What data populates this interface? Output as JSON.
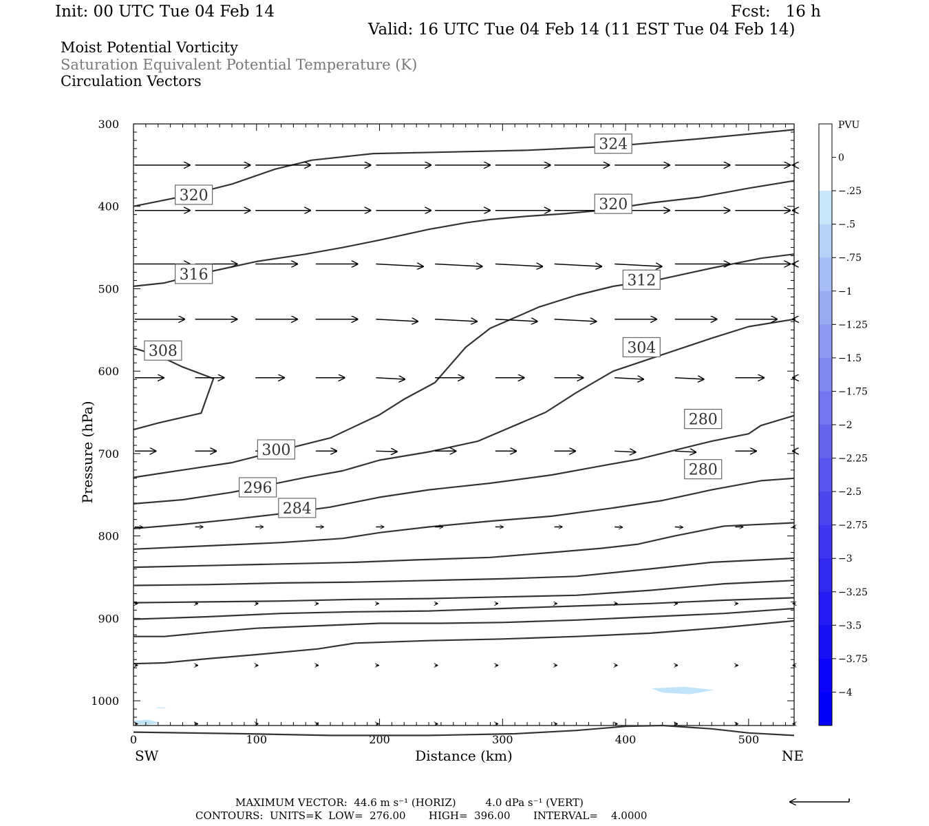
{
  "header": {
    "init": "Init: 00 UTC Tue 04 Feb 14",
    "fcst": "Fcst:   16 h",
    "valid": "Valid: 16 UTC Tue 04 Feb 14 (11 EST Tue 04 Feb 14)",
    "field1": "Moist Potential Vorticity",
    "field2": "Saturation Equivalent Potential Temperature (K)",
    "field3": "Circulation Vectors"
  },
  "footer": {
    "line1": "MAXIMUM VECTOR:  44.6 m s⁻¹ (HORIZ)         4.0 dPa s⁻¹ (VERT)",
    "line2": "CONTOURS:  UNITS=K  LOW=  276.00       HIGH=  396.00       INTERVAL=    4.0000"
  },
  "chart_data": {
    "type": "cross-section",
    "xlabel": "Distance (km)",
    "ylabel": "Pressure (hPa)",
    "xlim": [
      0,
      537
    ],
    "ylim": [
      1030,
      300
    ],
    "x_ticks": [
      "0",
      "100",
      "200",
      "300",
      "400",
      "500"
    ],
    "y_ticks": [
      "300",
      "400",
      "500",
      "600",
      "700",
      "800",
      "900",
      "1000"
    ],
    "x_end_labels": {
      "left": "SW",
      "right": "NE"
    },
    "colorbar": {
      "unit": "PVU",
      "labels": [
        "0",
        "-.25",
        "-.5",
        "-.75",
        "-1",
        "-1.25",
        "-1.5",
        "-1.75",
        "-2",
        "-2.25",
        "-2.5",
        "-2.75",
        "-3",
        "-3.25",
        "-3.5",
        "-3.75",
        "-4"
      ],
      "colors": [
        "#ffffff",
        "#ffffff",
        "#c6e6fa",
        "#b6d2f8",
        "#a8bef6",
        "#9aabf4",
        "#8d99f2",
        "#8087f0",
        "#7376ef",
        "#6665ee",
        "#5955ee",
        "#4c45ee",
        "#3f37ef",
        "#3229f1",
        "#251cf3",
        "#1710f5",
        "#0a04f8",
        "#0000fb"
      ]
    },
    "contours": [
      {
        "label": "324",
        "points": [
          [
            0,
            400
          ],
          [
            40,
            388
          ],
          [
            80,
            373
          ],
          [
            115,
            355
          ],
          [
            145,
            344
          ],
          [
            195,
            336
          ],
          [
            260,
            334
          ],
          [
            320,
            332
          ],
          [
            390,
            327
          ],
          [
            460,
            318
          ],
          [
            537,
            307
          ]
        ]
      },
      {
        "label": "320",
        "points": [
          [
            0,
            497
          ],
          [
            25,
            493
          ],
          [
            60,
            480
          ],
          [
            100,
            467
          ],
          [
            140,
            458
          ],
          [
            170,
            450
          ],
          [
            200,
            441
          ],
          [
            240,
            428
          ],
          [
            270,
            420
          ],
          [
            290,
            416
          ],
          [
            320,
            412
          ],
          [
            350,
            409
          ],
          [
            380,
            405
          ],
          [
            420,
            396
          ],
          [
            460,
            389
          ],
          [
            500,
            378
          ],
          [
            537,
            369
          ]
        ]
      },
      {
        "label": "320",
        "points": [
          [
            0,
            572
          ],
          [
            20,
            581
          ],
          [
            40,
            595
          ],
          [
            65,
            609
          ],
          [
            55,
            651
          ],
          [
            20,
            663
          ],
          [
            0,
            671
          ]
        ]
      },
      {
        "label": "316",
        "points": [
          [
            0,
            729
          ],
          [
            40,
            720
          ],
          [
            80,
            711
          ],
          [
            120,
            696
          ],
          [
            160,
            681
          ],
          [
            200,
            653
          ],
          [
            220,
            634
          ],
          [
            245,
            614
          ],
          [
            270,
            571
          ],
          [
            290,
            548
          ],
          [
            330,
            522
          ],
          [
            360,
            508
          ],
          [
            390,
            497
          ],
          [
            430,
            488
          ],
          [
            470,
            475
          ],
          [
            510,
            463
          ],
          [
            537,
            458
          ]
        ]
      },
      {
        "label": "312",
        "points": [
          [
            0,
            761
          ],
          [
            40,
            756
          ],
          [
            80,
            747
          ],
          [
            110,
            738
          ],
          [
            140,
            729
          ],
          [
            170,
            721
          ],
          [
            200,
            708
          ],
          [
            240,
            698
          ],
          [
            280,
            685
          ],
          [
            335,
            650
          ],
          [
            360,
            626
          ],
          [
            390,
            600
          ],
          [
            430,
            580
          ],
          [
            470,
            560
          ],
          [
            500,
            546
          ],
          [
            537,
            537
          ]
        ]
      },
      {
        "label": "308",
        "points": [
          [
            0,
            791
          ],
          [
            40,
            786
          ],
          [
            80,
            780
          ],
          [
            120,
            773
          ],
          [
            160,
            765
          ],
          [
            200,
            753
          ],
          [
            240,
            744
          ],
          [
            290,
            736
          ],
          [
            340,
            726
          ],
          [
            380,
            715
          ],
          [
            410,
            707
          ],
          [
            440,
            696
          ],
          [
            470,
            685
          ],
          [
            500,
            676
          ],
          [
            510,
            666
          ],
          [
            537,
            654
          ]
        ]
      },
      {
        "label": "304",
        "points": [
          [
            0,
            816
          ],
          [
            60,
            812
          ],
          [
            120,
            808
          ],
          [
            170,
            803
          ],
          [
            200,
            796
          ],
          [
            240,
            789
          ],
          [
            290,
            782
          ],
          [
            340,
            776
          ],
          [
            390,
            766
          ],
          [
            430,
            757
          ],
          [
            470,
            744
          ],
          [
            510,
            733
          ],
          [
            537,
            730
          ]
        ]
      },
      {
        "label": "300",
        "points": [
          [
            0,
            838
          ],
          [
            60,
            836
          ],
          [
            120,
            834
          ],
          [
            180,
            832
          ],
          [
            230,
            829
          ],
          [
            290,
            826
          ],
          [
            340,
            820
          ],
          [
            380,
            815
          ],
          [
            410,
            810
          ],
          [
            440,
            800
          ],
          [
            480,
            788
          ],
          [
            537,
            784
          ]
        ]
      },
      {
        "label": "296",
        "points": [
          [
            0,
            860
          ],
          [
            60,
            859
          ],
          [
            120,
            857
          ],
          [
            180,
            856
          ],
          [
            240,
            854
          ],
          [
            300,
            852
          ],
          [
            360,
            849
          ],
          [
            420,
            840
          ],
          [
            470,
            832
          ],
          [
            537,
            827
          ]
        ]
      },
      {
        "label": "",
        "points": [
          [
            0,
            881
          ],
          [
            60,
            880
          ],
          [
            120,
            879
          ],
          [
            180,
            877
          ],
          [
            240,
            876
          ],
          [
            300,
            874
          ],
          [
            360,
            872
          ],
          [
            420,
            866
          ],
          [
            480,
            858
          ],
          [
            537,
            854
          ]
        ]
      },
      {
        "label": "284",
        "points": [
          [
            0,
            901
          ],
          [
            60,
            898
          ],
          [
            120,
            894
          ],
          [
            180,
            892
          ],
          [
            240,
            891
          ],
          [
            300,
            888
          ],
          [
            360,
            885
          ],
          [
            420,
            882
          ],
          [
            480,
            878
          ],
          [
            537,
            875
          ]
        ]
      },
      {
        "label": "280",
        "points": [
          [
            0,
            922
          ],
          [
            25,
            922
          ],
          [
            60,
            917
          ],
          [
            100,
            912
          ],
          [
            150,
            909
          ],
          [
            200,
            906
          ],
          [
            250,
            906
          ],
          [
            300,
            905
          ],
          [
            360,
            902
          ],
          [
            420,
            898
          ],
          [
            480,
            894
          ],
          [
            537,
            888
          ]
        ]
      },
      {
        "label": "",
        "points": [
          [
            0,
            955
          ],
          [
            25,
            954
          ],
          [
            60,
            949
          ],
          [
            100,
            944
          ],
          [
            150,
            937
          ],
          [
            180,
            930
          ],
          [
            240,
            927
          ],
          [
            300,
            925
          ],
          [
            360,
            922
          ],
          [
            420,
            918
          ],
          [
            480,
            911
          ],
          [
            537,
            903
          ]
        ]
      },
      {
        "label": "280",
        "points": [
          [
            0,
            1038
          ],
          [
            90,
            1040
          ],
          [
            160,
            1042
          ],
          [
            240,
            1042
          ],
          [
            310,
            1040
          ],
          [
            360,
            1036
          ],
          [
            400,
            1031
          ],
          [
            430,
            1030
          ],
          [
            470,
            1034
          ],
          [
            500,
            1039
          ],
          [
            537,
            1042
          ]
        ]
      }
    ],
    "contour_label_positions": [
      [
        390,
        324
      ],
      [
        49,
        386
      ],
      [
        390,
        397
      ],
      [
        49,
        482
      ],
      [
        413,
        489
      ],
      [
        24,
        575
      ],
      [
        413,
        571
      ],
      [
        116,
        695
      ],
      [
        101,
        741
      ],
      [
        133,
        766
      ],
      [
        463,
        658
      ],
      [
        463,
        719
      ],
      [
        463,
        764
      ],
      [
        434,
        805
      ],
      [
        293,
        901
      ],
      [
        343,
        930
      ],
      [
        390,
        1027
      ]
    ],
    "vector_levels": [
      350,
      405,
      470,
      537,
      608,
      697,
      789,
      882,
      957,
      1028
    ],
    "vector_columns": [
      0,
      49,
      98,
      147,
      196,
      244,
      293,
      341,
      390,
      439,
      488,
      537
    ],
    "vector_lengths": [
      [
        42,
        42,
        42,
        42,
        42,
        42,
        42,
        42,
        42,
        42,
        42,
        42
      ],
      [
        42,
        42,
        42,
        42,
        42,
        42,
        42,
        42,
        42,
        42,
        42,
        42
      ],
      [
        42,
        32,
        32,
        32,
        36,
        36,
        36,
        36,
        36,
        42,
        42,
        42
      ],
      [
        38,
        32,
        32,
        32,
        32,
        32,
        32,
        32,
        32,
        32,
        32,
        32
      ],
      [
        22,
        22,
        22,
        22,
        22,
        22,
        22,
        22,
        22,
        22,
        22,
        22
      ],
      [
        16,
        16,
        16,
        16,
        16,
        16,
        16,
        16,
        16,
        16,
        16,
        16
      ],
      [
        6,
        6,
        6,
        6,
        6,
        6,
        6,
        6,
        6,
        6,
        6,
        6
      ],
      [
        2,
        2,
        2,
        2,
        2,
        2,
        2,
        2,
        2,
        2,
        2,
        2
      ],
      [
        2,
        2,
        2,
        2,
        2,
        2,
        2,
        2,
        2,
        2,
        2,
        2
      ],
      [
        2,
        2,
        2,
        2,
        2,
        2,
        2,
        2,
        2,
        2,
        2,
        2
      ]
    ],
    "vector_slopes": [
      [
        0,
        0,
        0,
        0,
        0,
        0,
        0,
        0,
        0,
        0,
        0,
        0
      ],
      [
        0,
        0,
        0,
        0,
        0,
        0,
        0,
        0,
        0,
        0,
        0,
        0
      ],
      [
        0,
        0,
        0,
        0,
        0.1,
        0.1,
        0.1,
        0.1,
        0.1,
        0,
        0,
        0
      ],
      [
        0,
        0,
        0,
        0,
        0.1,
        0.1,
        0.1,
        0.1,
        0,
        0,
        0,
        0
      ],
      [
        0,
        0,
        0,
        0,
        0.1,
        0,
        0,
        0,
        0.1,
        0.1,
        0,
        0
      ],
      [
        0,
        0,
        0,
        0,
        0.05,
        0,
        0,
        0,
        0.1,
        0.1,
        0,
        0
      ],
      [
        0.1,
        0,
        0,
        0,
        0,
        0,
        0,
        0,
        0.1,
        0.1,
        0,
        0
      ],
      [
        0,
        0,
        0,
        0,
        0,
        0,
        0,
        0,
        0,
        0,
        0,
        0
      ],
      [
        0,
        0,
        0,
        0,
        0,
        0,
        0,
        0,
        0,
        0,
        0,
        0
      ],
      [
        0,
        0,
        0,
        0,
        0,
        0,
        0,
        0,
        0,
        0,
        0,
        0
      ]
    ],
    "shaded_pv": [
      {
        "value": "-.25",
        "points": [
          [
            421,
            985
          ],
          [
            448,
            983
          ],
          [
            472,
            987
          ],
          [
            452,
            992
          ],
          [
            430,
            990
          ]
        ]
      },
      {
        "value": "-.25",
        "points": [
          [
            1,
            1024
          ],
          [
            12,
            1023
          ],
          [
            22,
            1027
          ],
          [
            12,
            1029
          ],
          [
            1,
            1028
          ]
        ]
      },
      {
        "value": "-.25",
        "points": [
          [
            19,
            1008
          ],
          [
            26,
            1008
          ],
          [
            26,
            1009
          ],
          [
            19,
            1009
          ]
        ]
      }
    ],
    "reference_vector": {
      "direction": "left"
    }
  }
}
